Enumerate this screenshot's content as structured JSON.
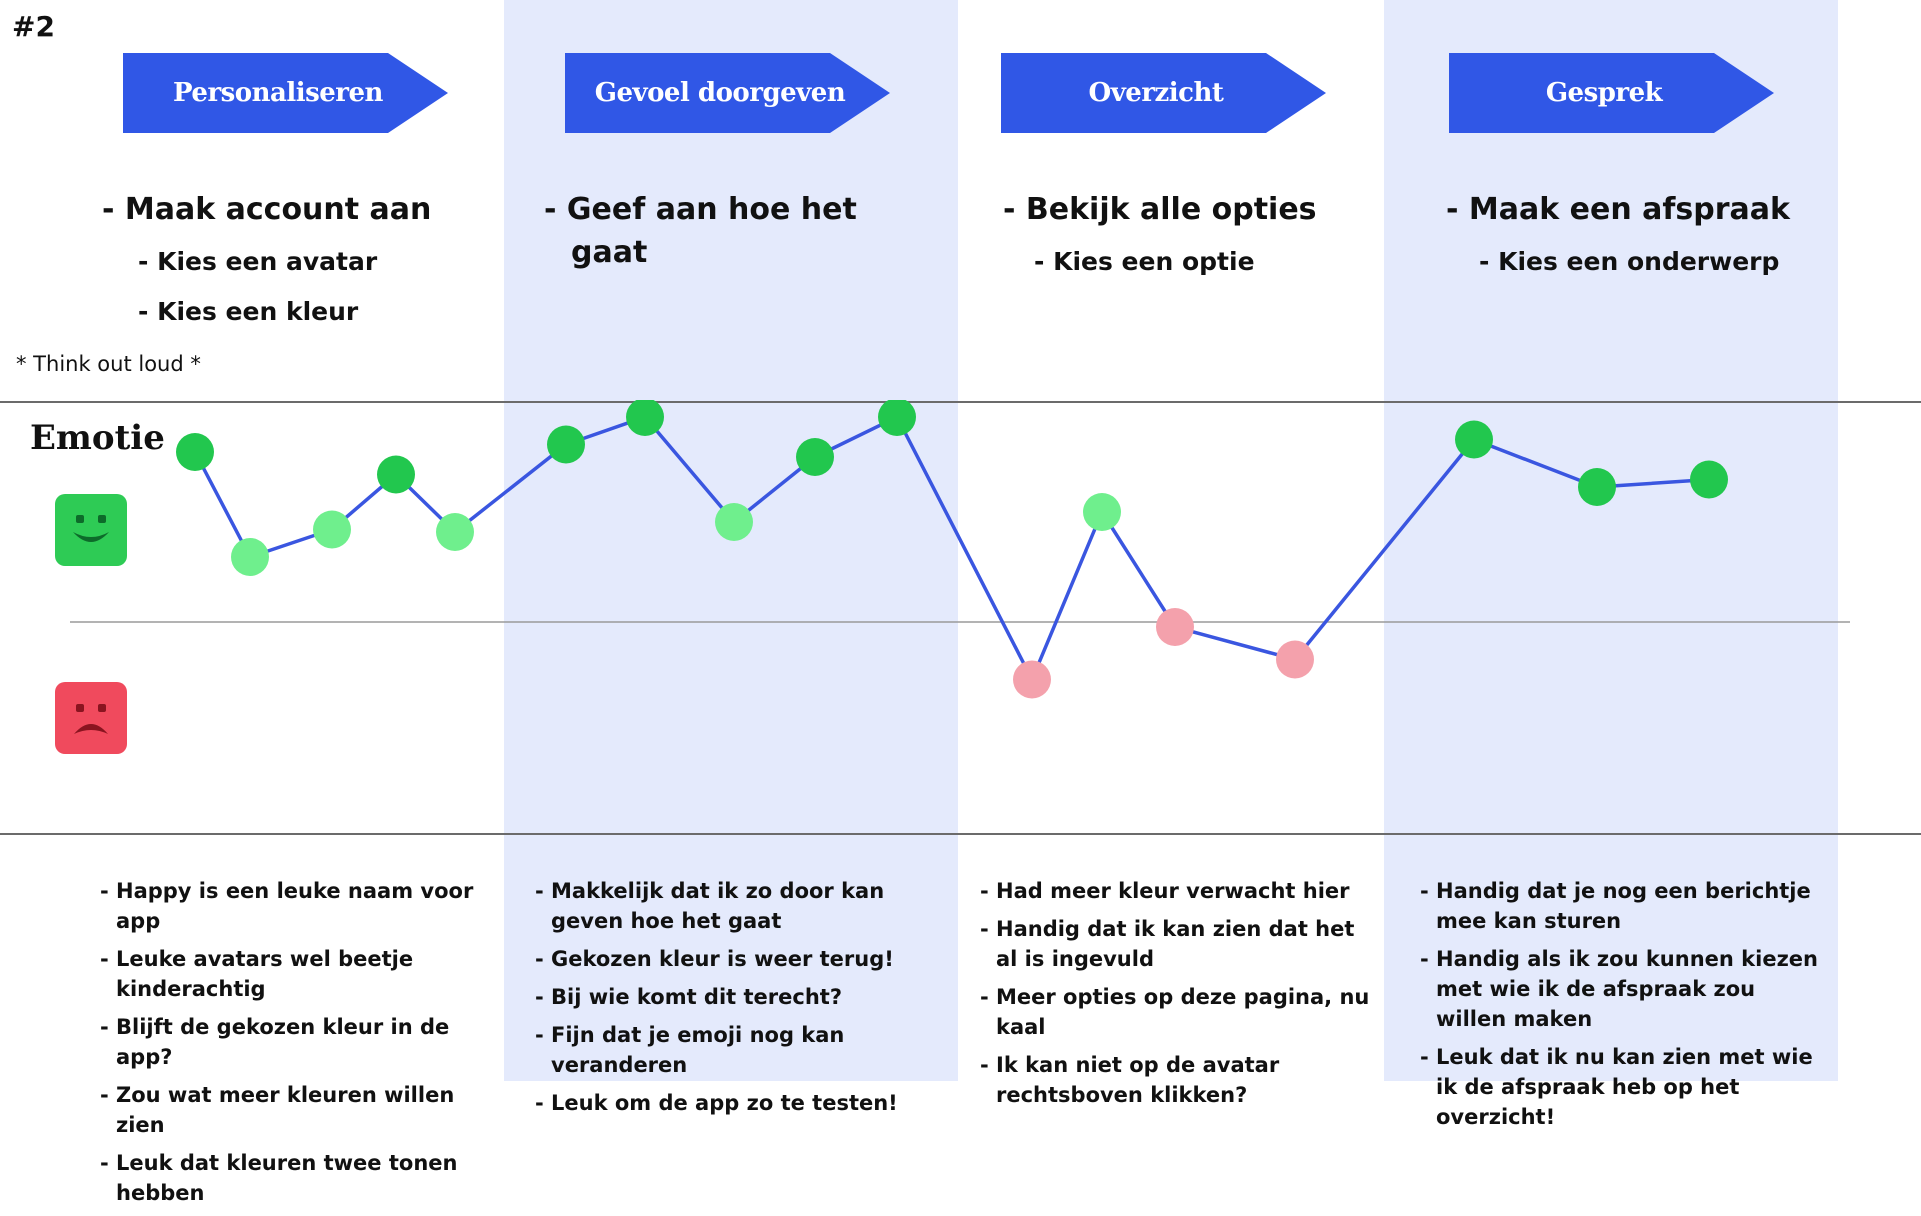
{
  "tag": "#2",
  "colors": {
    "phase_blue": "#3057e6",
    "band": "#e4eafc",
    "line": "#3a56e0",
    "happy_dark": "#22c74e",
    "happy_light": "#6fef8d",
    "sad_pink": "#f4a1ac",
    "happy_face": "#2ecb55",
    "sad_face": "#f04a5d"
  },
  "phases": [
    {
      "title": "Personaliseren",
      "steps": [
        {
          "level": 1,
          "text": "- Maak account aan"
        },
        {
          "level": 2,
          "text": "- Kies een avatar"
        },
        {
          "level": 2,
          "text": "- Kies een kleur"
        }
      ],
      "notes": [
        "Happy is een leuke naam voor app",
        "Leuke avatars wel beetje kinderachtig",
        "Blijft de gekozen kleur in de app?",
        "Zou wat meer kleuren willen zien",
        "Leuk dat kleuren twee tonen hebben"
      ]
    },
    {
      "title": "Gevoel doorgeven",
      "steps": [
        {
          "level": 1,
          "text": "- Geef aan hoe het"
        },
        {
          "level": 1,
          "text": "gaat"
        }
      ],
      "notes": [
        "Makkelijk dat ik zo door kan geven hoe het gaat",
        "Gekozen kleur is weer terug!",
        "Bij wie komt dit terecht?",
        "Fijn dat je emoji nog kan veranderen",
        "Leuk om de app zo te testen!"
      ]
    },
    {
      "title": "Overzicht",
      "steps": [
        {
          "level": 1,
          "text": "- Bekijk alle opties"
        },
        {
          "level": 2,
          "text": "- Kies een optie"
        }
      ],
      "notes": [
        "Had meer kleur verwacht hier",
        "Handig dat ik kan zien dat het al is ingevuld",
        "Meer opties op deze pagina, nu kaal",
        "Ik kan niet op de avatar rechtsboven klikken?"
      ]
    },
    {
      "title": "Gesprek",
      "steps": [
        {
          "level": 1,
          "text": "- Maak een afspraak"
        },
        {
          "level": 2,
          "text": "- Kies een onderwerp"
        }
      ],
      "notes": [
        "Handig dat je nog een berichtje mee kan sturen",
        "Handig als ik zou kunnen kiezen met wie ik de afspraak zou willen maken",
        "Leuk dat ik nu kan zien met wie ik de afspraak heb op het overzicht!"
      ]
    }
  ],
  "think_note": "* Think out loud *",
  "emotion_title": "Emotie",
  "icons": {
    "happy": "happy-face-icon",
    "sad": "sad-face-icon"
  },
  "chart_data": {
    "type": "line",
    "y_range": [
      -1,
      1
    ],
    "neutral": 0,
    "points": [
      {
        "x": 1,
        "y": 0.68,
        "mood": "happy"
      },
      {
        "x": 2,
        "y": 0.26,
        "mood": "light"
      },
      {
        "x": 3,
        "y": 0.37,
        "mood": "light"
      },
      {
        "x": 4,
        "y": 0.59,
        "mood": "happy"
      },
      {
        "x": 5,
        "y": 0.36,
        "mood": "light"
      },
      {
        "x": 6,
        "y": 0.71,
        "mood": "happy"
      },
      {
        "x": 7,
        "y": 0.82,
        "mood": "happy"
      },
      {
        "x": 8,
        "y": 0.4,
        "mood": "light"
      },
      {
        "x": 9,
        "y": 0.66,
        "mood": "happy"
      },
      {
        "x": 10,
        "y": 0.82,
        "mood": "happy"
      },
      {
        "x": 11,
        "y": -0.23,
        "mood": "sad"
      },
      {
        "x": 12,
        "y": 0.44,
        "mood": "light"
      },
      {
        "x": 13,
        "y": -0.02,
        "mood": "sad"
      },
      {
        "x": 14,
        "y": -0.15,
        "mood": "sad"
      },
      {
        "x": 15,
        "y": 0.73,
        "mood": "happy"
      },
      {
        "x": 16,
        "y": 0.54,
        "mood": "happy"
      },
      {
        "x": 17,
        "y": 0.57,
        "mood": "happy"
      }
    ]
  }
}
